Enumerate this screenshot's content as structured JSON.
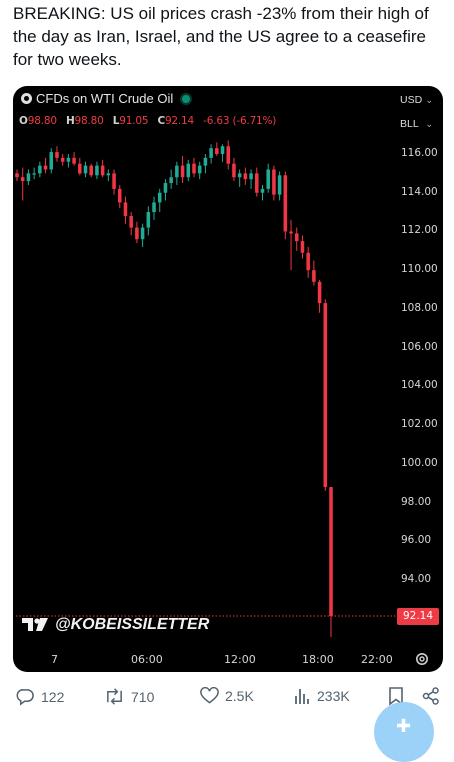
{
  "tweet": {
    "lines": [
      "BREAKING: US oil prices crash -23% from their high of",
      "the day as Iran, Israel, and the US agree to a ceasefire",
      "for two weeks."
    ]
  },
  "chart_data": {
    "type": "candlestick",
    "title": "CFDs on WTI Crude Oil",
    "ohlc": {
      "open_label": "O",
      "open": "98.80",
      "high_label": "H",
      "high": "98.80",
      "low_label": "L",
      "low": "91.05",
      "close_label": "C",
      "close": "92.14",
      "change": "-6.63 (-6.71%)"
    },
    "currency": "USD",
    "unit": "BLL",
    "y_ticks": [
      "116.00",
      "114.00",
      "112.00",
      "110.00",
      "108.00",
      "106.00",
      "104.00",
      "102.00",
      "100.00",
      "98.00",
      "96.00",
      "94.00"
    ],
    "ylim": [
      91.5,
      118
    ],
    "x_ticks": [
      "7",
      "06:00",
      "12:00",
      "18:00",
      "22:00"
    ],
    "last_price": "92.14",
    "last_price_value": 92.14,
    "colors": {
      "up": "#22ab94",
      "down": "#f23645",
      "background": "#000000"
    },
    "candles": [
      [
        115.0,
        115.2,
        114.6,
        114.8
      ],
      [
        114.8,
        115.3,
        113.6,
        114.6
      ],
      [
        114.6,
        115.2,
        114.4,
        115.0
      ],
      [
        115.0,
        115.3,
        114.7,
        115.0
      ],
      [
        115.0,
        115.6,
        114.8,
        115.4
      ],
      [
        115.4,
        115.8,
        115.0,
        115.2
      ],
      [
        115.2,
        116.3,
        115.0,
        116.1
      ],
      [
        116.1,
        116.4,
        115.6,
        115.8
      ],
      [
        115.8,
        116.0,
        115.4,
        115.6
      ],
      [
        115.6,
        116.0,
        115.3,
        115.8
      ],
      [
        115.8,
        116.1,
        115.4,
        115.5
      ],
      [
        115.5,
        115.8,
        114.9,
        115.0
      ],
      [
        115.0,
        115.6,
        114.8,
        115.4
      ],
      [
        115.4,
        115.5,
        114.8,
        114.9
      ],
      [
        114.9,
        115.6,
        114.7,
        115.4
      ],
      [
        115.4,
        115.7,
        114.8,
        114.9
      ],
      [
        114.9,
        115.2,
        114.6,
        115.0
      ],
      [
        115.0,
        115.2,
        113.9,
        114.2
      ],
      [
        114.2,
        114.4,
        113.2,
        113.5
      ],
      [
        113.5,
        113.8,
        112.4,
        112.8
      ],
      [
        112.8,
        113.0,
        111.8,
        112.2
      ],
      [
        112.2,
        112.5,
        111.4,
        111.6
      ],
      [
        111.6,
        112.4,
        111.2,
        112.2
      ],
      [
        112.2,
        113.3,
        111.8,
        113.0
      ],
      [
        113.0,
        113.8,
        112.6,
        113.5
      ],
      [
        113.5,
        114.2,
        113.0,
        114.0
      ],
      [
        114.0,
        114.7,
        113.6,
        114.5
      ],
      [
        114.5,
        115.2,
        114.2,
        114.8
      ],
      [
        114.8,
        115.6,
        114.4,
        115.4
      ],
      [
        115.4,
        115.9,
        114.5,
        114.8
      ],
      [
        114.8,
        115.7,
        114.6,
        115.5
      ],
      [
        115.5,
        115.8,
        114.8,
        115.0
      ],
      [
        115.0,
        115.6,
        114.7,
        115.4
      ],
      [
        115.4,
        116.0,
        115.0,
        115.8
      ],
      [
        115.8,
        116.5,
        115.5,
        116.3
      ],
      [
        116.3,
        116.6,
        115.9,
        116.0
      ],
      [
        116.0,
        116.5,
        115.6,
        116.4
      ],
      [
        116.4,
        116.7,
        115.2,
        115.5
      ],
      [
        115.5,
        115.8,
        114.6,
        114.8
      ],
      [
        114.8,
        115.2,
        114.3,
        115.0
      ],
      [
        115.0,
        115.3,
        114.4,
        114.7
      ],
      [
        114.7,
        115.2,
        114.2,
        115.0
      ],
      [
        115.0,
        115.3,
        113.8,
        114.0
      ],
      [
        114.0,
        114.4,
        113.6,
        114.2
      ],
      [
        114.2,
        115.5,
        114.0,
        115.2
      ],
      [
        115.2,
        115.4,
        113.6,
        113.9
      ],
      [
        113.9,
        115.1,
        113.6,
        114.9
      ],
      [
        114.9,
        115.1,
        111.6,
        112.0
      ],
      [
        112.0,
        112.6,
        110.0,
        111.9
      ],
      [
        111.9,
        112.2,
        111.0,
        111.5
      ],
      [
        111.5,
        111.8,
        110.6,
        110.9
      ],
      [
        110.9,
        111.2,
        109.6,
        110.0
      ],
      [
        110.0,
        110.5,
        109.2,
        109.4
      ],
      [
        109.4,
        109.5,
        107.8,
        108.3
      ],
      [
        108.3,
        108.5,
        98.6,
        98.8
      ],
      [
        98.8,
        98.8,
        91.05,
        92.14
      ]
    ]
  },
  "watermark": {
    "text": "@KOBEISSILETTER"
  },
  "actions": {
    "replies": "122",
    "reposts": "710",
    "likes": "2.5K",
    "views": "233K"
  }
}
